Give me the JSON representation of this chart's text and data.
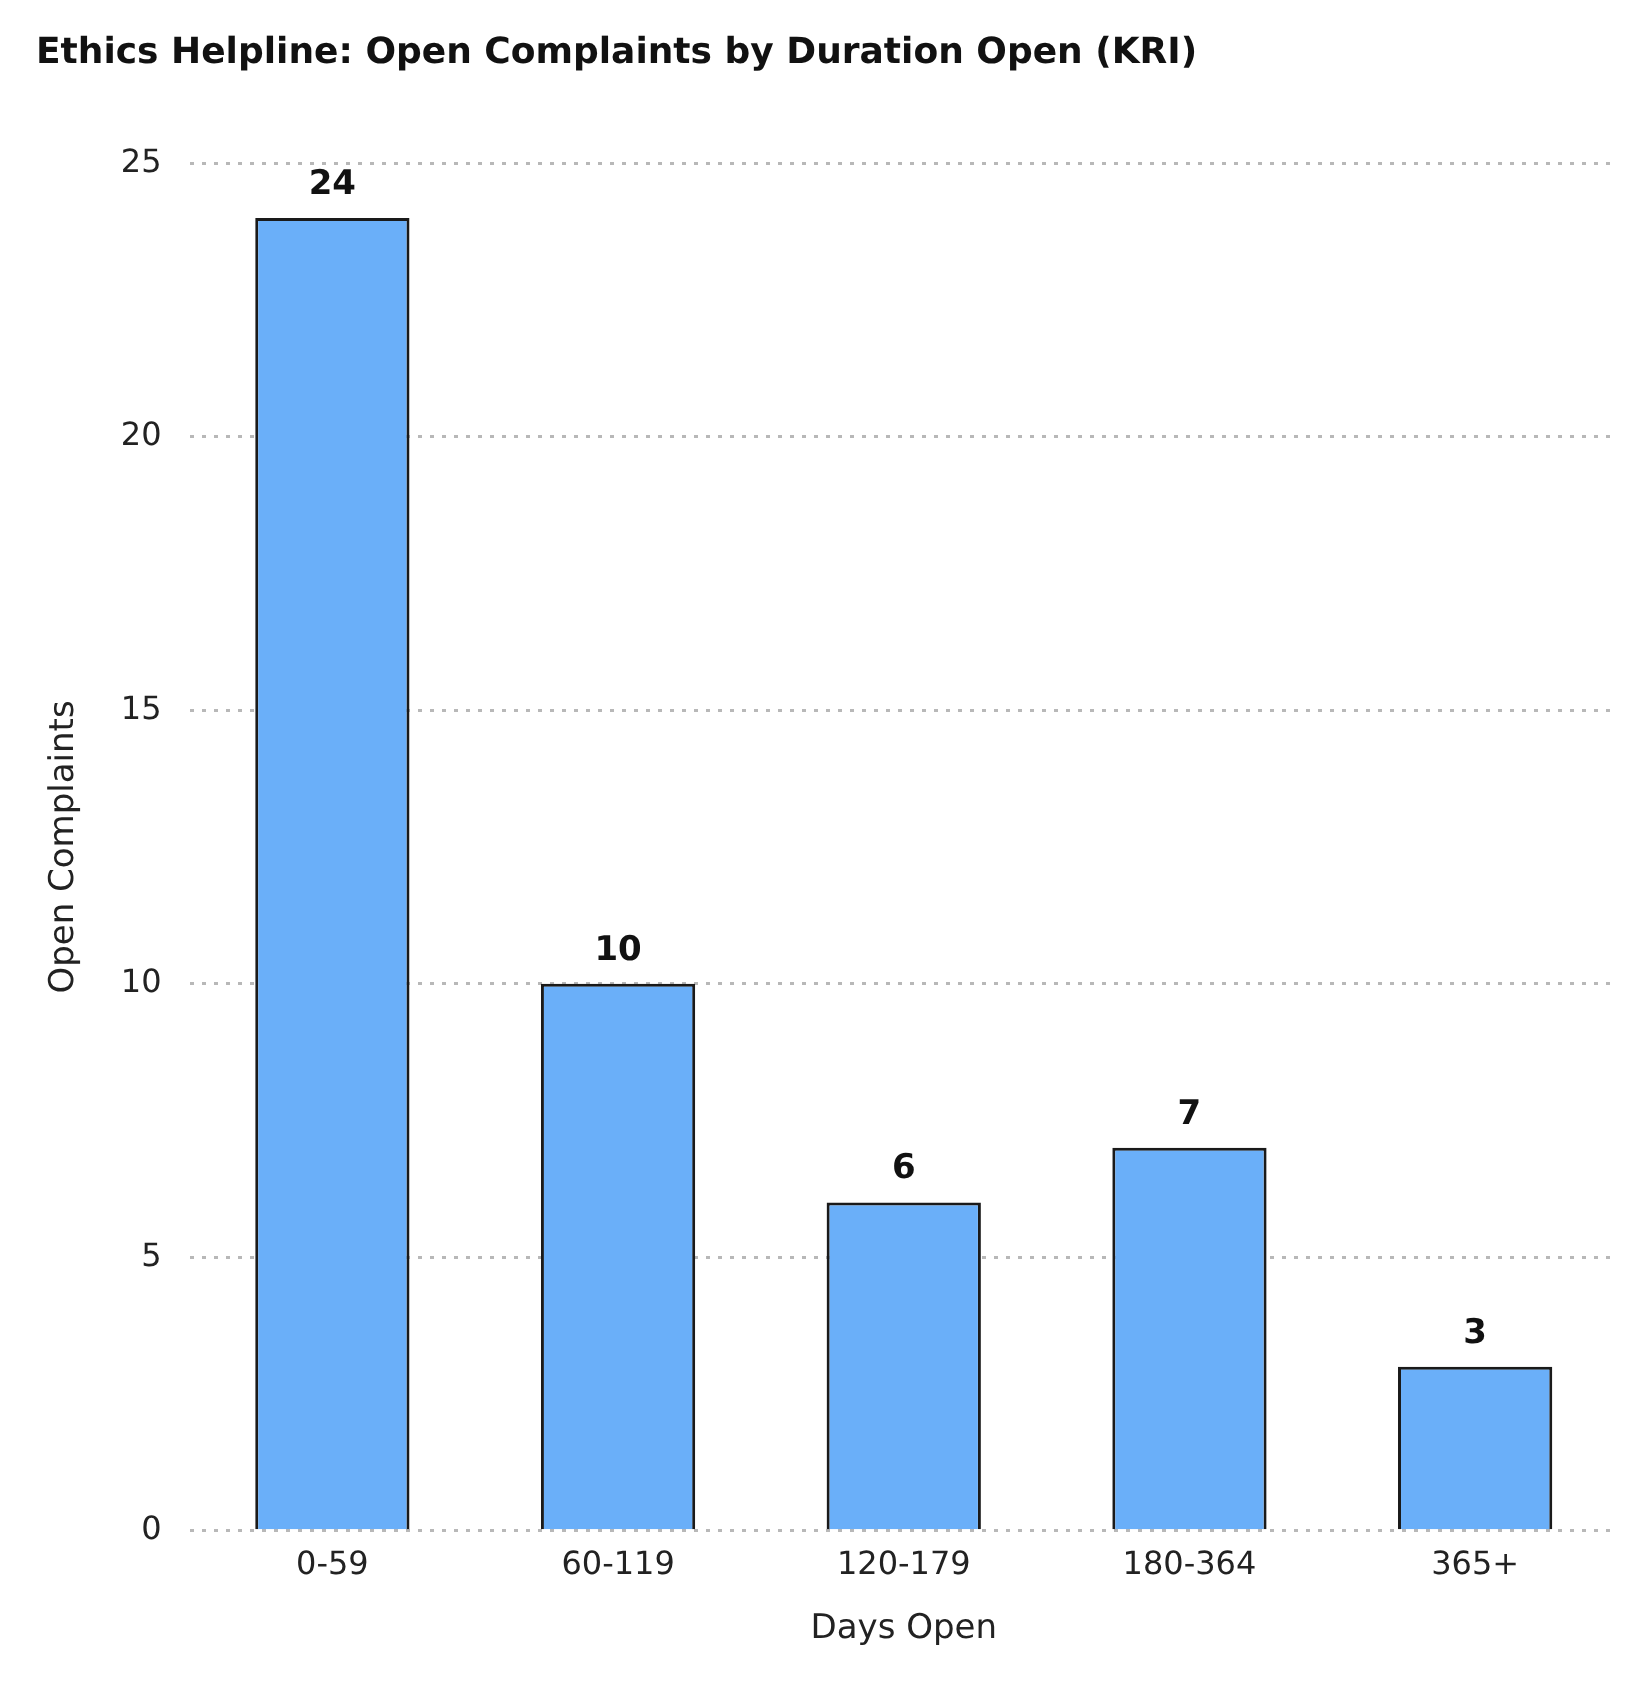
{
  "chart_data": {
    "type": "bar",
    "title": "Ethics Helpline: Open Complaints by Duration Open (KRI)",
    "xlabel": "Days Open",
    "ylabel": "Open Complaints",
    "categories": [
      "0-59",
      "60-119",
      "120-179",
      "180-364",
      "365+"
    ],
    "values": [
      24,
      10,
      6,
      7,
      3
    ],
    "color": "#6aaff9",
    "ylim": [
      0,
      25
    ],
    "yticks": [
      0,
      5,
      10,
      15,
      20,
      25
    ],
    "grid": "y",
    "legend": false,
    "data_labels": true
  }
}
